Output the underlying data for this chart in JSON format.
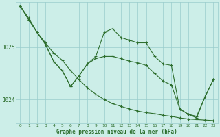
{
  "background_color": "#cceee8",
  "plot_bg_color": "#cceee8",
  "grid_color": "#99cccc",
  "line_color": "#2d6e2d",
  "yticks": [
    1024,
    1025
  ],
  "xticks": [
    0,
    1,
    2,
    3,
    4,
    5,
    6,
    7,
    8,
    9,
    10,
    11,
    12,
    13,
    14,
    15,
    16,
    17,
    18,
    19,
    20,
    21,
    22,
    23
  ],
  "ylim": [
    1023.55,
    1025.85
  ],
  "xlim": [
    -0.5,
    23.5
  ],
  "line1_x": [
    0,
    1,
    2,
    3,
    4,
    5,
    6,
    7,
    8,
    9,
    10,
    11,
    12,
    13,
    14,
    15,
    16,
    17,
    18,
    19,
    20,
    21,
    22,
    23
  ],
  "line1_y": [
    1025.78,
    1025.55,
    1025.28,
    1025.08,
    1024.88,
    1024.75,
    1024.55,
    1024.38,
    1024.22,
    1024.1,
    1024.0,
    1023.92,
    1023.87,
    1023.82,
    1023.78,
    1023.75,
    1023.73,
    1023.7,
    1023.68,
    1023.65,
    1023.63,
    1023.62,
    1023.61,
    1023.6
  ],
  "line2_x": [
    0,
    1,
    2,
    3,
    4,
    5,
    6,
    7,
    8,
    9,
    10,
    11,
    12,
    13,
    14,
    15,
    16,
    17,
    18,
    19,
    20,
    21,
    22,
    23
  ],
  "line2_y": [
    1025.78,
    1025.52,
    1025.28,
    1025.05,
    1024.72,
    1024.55,
    1024.25,
    1024.45,
    1024.68,
    1024.82,
    1025.28,
    1025.35,
    1025.18,
    1025.13,
    1025.08,
    1025.08,
    1024.82,
    1024.68,
    1024.65,
    1023.82,
    1023.72,
    1023.68,
    1024.05,
    1024.38
  ],
  "line3_x": [
    0,
    1,
    2,
    3,
    4,
    5,
    6,
    7,
    8,
    9,
    10,
    11,
    12,
    13,
    14,
    15,
    16,
    17,
    18,
    19,
    20,
    21,
    22,
    23
  ],
  "line3_y": [
    1025.78,
    1025.52,
    1025.28,
    1025.05,
    1024.72,
    1024.55,
    1024.25,
    1024.45,
    1024.68,
    1024.78,
    1024.82,
    1024.82,
    1024.78,
    1024.73,
    1024.7,
    1024.65,
    1024.5,
    1024.35,
    1024.28,
    1023.82,
    1023.72,
    1023.65,
    1024.05,
    1024.38
  ],
  "xlabel": "Graphe pression niveau de la mer (hPa)",
  "figsize": [
    3.2,
    2.0
  ],
  "dpi": 100
}
